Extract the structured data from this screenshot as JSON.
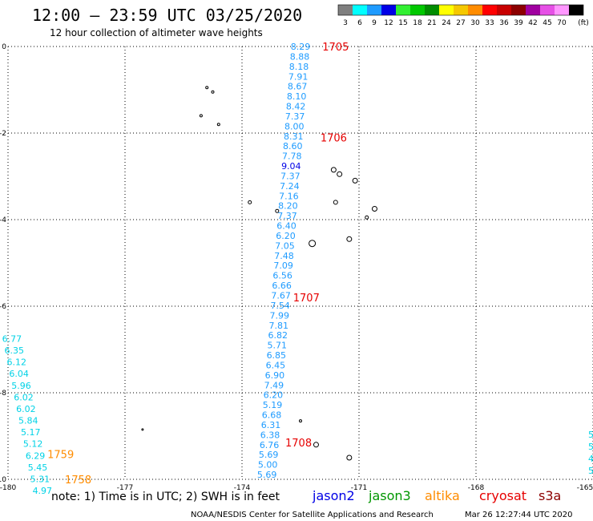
{
  "header": {
    "title": "12:00 – 23:59 UTC 03/25/2020",
    "subtitle": "12 hour collection of altimeter wave heights"
  },
  "legend": {
    "unit": "(ft)",
    "bins": [
      {
        "label": "3",
        "color": "#7f7f7f"
      },
      {
        "label": "6",
        "color": "#00ffff"
      },
      {
        "label": "9",
        "color": "#1e9bff"
      },
      {
        "label": "12",
        "color": "#0000e6"
      },
      {
        "label": "15",
        "color": "#32f032"
      },
      {
        "label": "18",
        "color": "#00c800"
      },
      {
        "label": "21",
        "color": "#008c00"
      },
      {
        "label": "24",
        "color": "#ffff00"
      },
      {
        "label": "27",
        "color": "#f5c800"
      },
      {
        "label": "30",
        "color": "#ff8c00"
      },
      {
        "label": "33",
        "color": "#ff0000"
      },
      {
        "label": "36",
        "color": "#c80000"
      },
      {
        "label": "39",
        "color": "#8c0000"
      },
      {
        "label": "42",
        "color": "#a000a0"
      },
      {
        "label": "45",
        "color": "#e650e6"
      },
      {
        "label": "70",
        "color": "#ff96ff"
      },
      {
        "label": "",
        "color": "#000000"
      }
    ]
  },
  "map": {
    "lon_range": [
      -180,
      -165
    ],
    "lat_range": [
      -10,
      0
    ],
    "x_ticks": [
      "-180",
      "-177",
      "-174",
      "-171",
      "-168",
      "-165"
    ],
    "x_tick_values": [
      -180,
      -177,
      -174,
      -171,
      -168,
      -165
    ],
    "y_ticks": [
      "0",
      "-2",
      "-4",
      "-6",
      "-8",
      "-10"
    ],
    "y_tick_values": [
      0,
      -2,
      -4,
      -6,
      -8,
      -10
    ],
    "grid": true,
    "colors": {
      "sea_light": "#1e9bff",
      "sea_pale": "#00d2e6",
      "sea_dark": "#0000e6",
      "time": "#e60000",
      "time_altika": "#ff8c00",
      "land": "#000000"
    }
  },
  "tracks": [
    {
      "name": "cryosat",
      "heights": [
        "8.29",
        "8.88",
        "8.18",
        "7.91",
        "8.67",
        "8.10",
        "8.42",
        "7.37",
        "8.00",
        "8.31",
        "8.60",
        "7.78",
        "9.04",
        "7.37",
        "7.24",
        "7.16",
        "8.20",
        "7.37",
        "6.40",
        "6.20",
        "7.05",
        "7.48",
        "7.09",
        "6.56",
        "6.66",
        "7.67",
        "7.54",
        "7.99",
        "7.81",
        "6.82",
        "5.71",
        "6.85",
        "6.45",
        "6.90",
        "7.49",
        "6.20",
        "5.19",
        "6.68",
        "6.31",
        "6.38",
        "6.76",
        "5.69",
        "5.00",
        "5.69"
      ],
      "lons": [
        -172.5,
        -172.52,
        -172.54,
        -172.56,
        -172.58,
        -172.6,
        -172.62,
        -172.64,
        -172.66,
        -172.68,
        -172.7,
        -172.72,
        -172.74,
        -172.76,
        -172.78,
        -172.8,
        -172.82,
        -172.84,
        -172.86,
        -172.88,
        -172.9,
        -172.92,
        -172.94,
        -172.96,
        -172.98,
        -173.0,
        -173.02,
        -173.04,
        -173.06,
        -173.08,
        -173.1,
        -173.12,
        -173.14,
        -173.16,
        -173.18,
        -173.2,
        -173.22,
        -173.24,
        -173.26,
        -173.28,
        -173.3,
        -173.32,
        -173.34,
        -173.36
      ],
      "lats": [
        0.0,
        -0.23,
        -0.46,
        -0.69,
        -0.92,
        -1.15,
        -1.38,
        -1.61,
        -1.84,
        -2.07,
        -2.3,
        -2.53,
        -2.76,
        -2.99,
        -3.22,
        -3.45,
        -3.68,
        -3.91,
        -4.14,
        -4.37,
        -4.6,
        -4.83,
        -5.06,
        -5.29,
        -5.52,
        -5.75,
        -5.98,
        -6.21,
        -6.44,
        -6.67,
        -6.9,
        -7.13,
        -7.36,
        -7.59,
        -7.82,
        -8.05,
        -8.28,
        -8.51,
        -8.74,
        -8.97,
        -9.2,
        -9.43,
        -9.66,
        -9.89
      ],
      "time_labels": [
        {
          "text": "1705",
          "lon": -171.6,
          "lat": 0.0
        },
        {
          "text": "1706",
          "lon": -171.65,
          "lat": -2.1
        },
        {
          "text": "1707",
          "lon": -172.35,
          "lat": -5.8
        },
        {
          "text": "1708",
          "lon": -172.55,
          "lat": -9.15
        }
      ]
    },
    {
      "name": "altika",
      "heights": [
        "6.77",
        "6.35",
        "6.12",
        "6.04",
        "5.96",
        "6.02",
        "6.02",
        "5.84",
        "5.17",
        "5.12",
        "6.29",
        "5.45",
        "5.31",
        "4.97"
      ],
      "lons": [
        -179.9,
        -179.84,
        -179.78,
        -179.72,
        -179.66,
        -179.6,
        -179.54,
        -179.48,
        -179.42,
        -179.36,
        -179.3,
        -179.24,
        -179.18,
        -179.12
      ],
      "lats": [
        -6.75,
        -7.02,
        -7.29,
        -7.56,
        -7.83,
        -8.1,
        -8.37,
        -8.64,
        -8.91,
        -9.18,
        -9.45,
        -9.72,
        -9.99,
        -10.26
      ],
      "time_labels": [
        {
          "text": "1759",
          "lon": -178.65,
          "lat": -9.42
        },
        {
          "text": "1758",
          "lon": -178.2,
          "lat": -10.0
        }
      ]
    }
  ],
  "features": {
    "islands": [
      {
        "lon": -174.9,
        "lat": -0.95,
        "r": 1.5
      },
      {
        "lon": -174.75,
        "lat": -1.05,
        "r": 1.5
      },
      {
        "lon": -175.05,
        "lat": -1.6,
        "r": 1.5
      },
      {
        "lon": -174.6,
        "lat": -1.8,
        "r": 1.5
      },
      {
        "lon": -173.8,
        "lat": -3.6,
        "r": 2
      },
      {
        "lon": -173.1,
        "lat": -3.8,
        "r": 2
      },
      {
        "lon": -171.65,
        "lat": -2.85,
        "r": 3
      },
      {
        "lon": -171.5,
        "lat": -2.95,
        "r": 3
      },
      {
        "lon": -171.1,
        "lat": -3.1,
        "r": 3
      },
      {
        "lon": -171.6,
        "lat": -3.6,
        "r": 2.5
      },
      {
        "lon": -170.6,
        "lat": -3.75,
        "r": 3
      },
      {
        "lon": -170.8,
        "lat": -3.95,
        "r": 2
      },
      {
        "lon": -172.2,
        "lat": -4.55,
        "r": 4
      },
      {
        "lon": -171.25,
        "lat": -4.45,
        "r": 3
      },
      {
        "lon": -172.5,
        "lat": -8.65,
        "r": 1.5
      },
      {
        "lon": -176.55,
        "lat": -8.85,
        "r": 1
      },
      {
        "lon": -172.1,
        "lat": -9.2,
        "r": 3
      },
      {
        "lon": -171.25,
        "lat": -9.5,
        "r": 3
      }
    ]
  },
  "edge_fragments": [
    "5",
    "5",
    "4",
    "5"
  ],
  "footer": {
    "note": "note: 1) Time is in UTC; 2) SWH is in feet",
    "satellites": [
      {
        "name": "jason2",
        "color": "#0000e6"
      },
      {
        "name": "jason3",
        "color": "#009600"
      },
      {
        "name": "altika",
        "color": "#ff8c00"
      },
      {
        "name": "cryosat",
        "color": "#e60000"
      },
      {
        "name": "s3a",
        "color": "#8c0000"
      }
    ],
    "credit": "NOAA/NESDIS Center for Satellite Applications and Research",
    "timestamp": "Mar 26 12:27:44 UTC 2020"
  }
}
